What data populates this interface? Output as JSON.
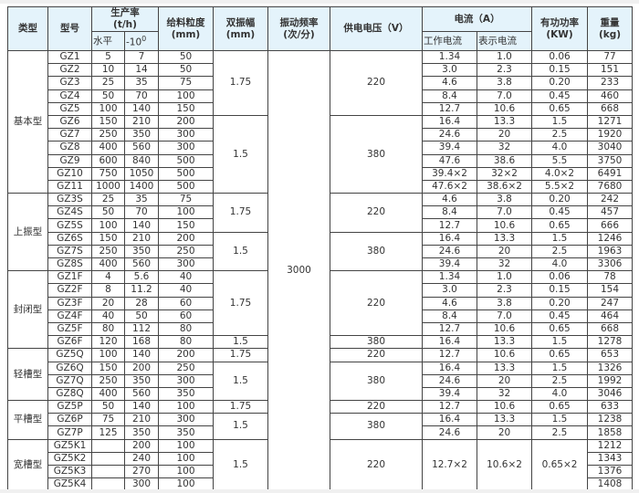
{
  "header": {
    "type": "类型",
    "model": "型号",
    "capacity": "生产率",
    "capacity_unit": "(t/h)",
    "capacity_horizontal": "水平",
    "capacity_incline": "-10",
    "capacity_incline_sup": "0",
    "feed_size": "给料粒度",
    "feed_size_unit": "(mm)",
    "amplitude": "双振幅",
    "amplitude_unit": "(mm)",
    "frequency": "振动频率",
    "frequency_unit": "(次/分)",
    "voltage": "供电电压（V）",
    "current": "电流（A）",
    "current_work": "工作电流",
    "current_show": "表示电流",
    "power": "有功功率",
    "power_unit": "(KW)",
    "weight": "重量",
    "weight_unit": "(kg)"
  },
  "types": [
    {
      "label": "基本型",
      "span": 11
    },
    {
      "label": "上振型",
      "span": 6
    },
    {
      "label": "封闭型",
      "span": 6
    },
    {
      "label": "轻槽型",
      "span": 4
    },
    {
      "label": "平槽型",
      "span": 3
    },
    {
      "label": "宽槽型",
      "span": 4
    }
  ],
  "amplitude": [
    {
      "value": "1.75",
      "span": 5
    },
    {
      "value": "1.5",
      "span": 6
    },
    {
      "value": "1.75",
      "span": 3
    },
    {
      "value": "1.5",
      "span": 3
    },
    {
      "value": "1.75",
      "span": 5
    },
    {
      "value": "1.5",
      "span": 1
    },
    {
      "value": "1.75",
      "span": 1
    },
    {
      "value": "1.5",
      "span": 3
    },
    {
      "value": "1.75",
      "span": 1
    },
    {
      "value": "1.5",
      "span": 2
    },
    {
      "value": "1.5",
      "span": 4
    }
  ],
  "frequency": [
    {
      "value": "3000",
      "span": 34
    }
  ],
  "voltage": [
    {
      "value": "220",
      "span": 5
    },
    {
      "value": "380",
      "span": 6
    },
    {
      "value": "220",
      "span": 3
    },
    {
      "value": "380",
      "span": 3
    },
    {
      "value": "220",
      "span": 5
    },
    {
      "value": "380",
      "span": 1
    },
    {
      "value": "220",
      "span": 1
    },
    {
      "value": "380",
      "span": 3
    },
    {
      "value": "220",
      "span": 1
    },
    {
      "value": "380",
      "span": 2
    },
    {
      "value": "220",
      "span": 4
    }
  ],
  "rows": [
    {
      "model": "GZ1",
      "horiz": "5",
      "incl": "7",
      "feed": "50",
      "work": "1.34",
      "show": "1.0",
      "power": "0.06",
      "weight": "77"
    },
    {
      "model": "GZ2",
      "horiz": "10",
      "incl": "14",
      "feed": "50",
      "work": "3.0",
      "show": "2.3",
      "power": "0.15",
      "weight": "151"
    },
    {
      "model": "GZ3",
      "horiz": "25",
      "incl": "35",
      "feed": "75",
      "work": "4.6",
      "show": "3.8",
      "power": "0.20",
      "weight": "233"
    },
    {
      "model": "GZ4",
      "horiz": "50",
      "incl": "70",
      "feed": "100",
      "work": "8.4",
      "show": "7.0",
      "power": "0.45",
      "weight": "460"
    },
    {
      "model": "GZ5",
      "horiz": "100",
      "incl": "140",
      "feed": "150",
      "work": "12.7",
      "show": "10.6",
      "power": "0.65",
      "weight": "668"
    },
    {
      "model": "GZ6",
      "horiz": "150",
      "incl": "210",
      "feed": "200",
      "work": "16.4",
      "show": "13.3",
      "power": "1.5",
      "weight": "1271"
    },
    {
      "model": "GZ7",
      "horiz": "250",
      "incl": "350",
      "feed": "300",
      "work": "24.6",
      "show": "20",
      "power": "2.5",
      "weight": "1920"
    },
    {
      "model": "GZ8",
      "horiz": "400",
      "incl": "560",
      "feed": "300",
      "work": "39.4",
      "show": "32",
      "power": "4.0",
      "weight": "3040"
    },
    {
      "model": "GZ9",
      "horiz": "600",
      "incl": "840",
      "feed": "500",
      "work": "47.6",
      "show": "38.6",
      "power": "5.5",
      "weight": "3750"
    },
    {
      "model": "GZ10",
      "horiz": "750",
      "incl": "1050",
      "feed": "500",
      "work": "39.4×2",
      "show": "32×2",
      "power": "4.0×2",
      "weight": "6491"
    },
    {
      "model": "GZ11",
      "horiz": "1000",
      "incl": "1400",
      "feed": "500",
      "work": "47.6×2",
      "show": "38.6×2",
      "power": "5.5×2",
      "weight": "7680"
    },
    {
      "model": "GZ3S",
      "horiz": "25",
      "incl": "35",
      "feed": "75",
      "work": "4.6",
      "show": "3.8",
      "power": "0.20",
      "weight": "242"
    },
    {
      "model": "GZ4S",
      "horiz": "50",
      "incl": "70",
      "feed": "100",
      "work": "8.4",
      "show": "7.0",
      "power": "0.45",
      "weight": "457"
    },
    {
      "model": "GZ5S",
      "horiz": "100",
      "incl": "140",
      "feed": "150",
      "work": "12.7",
      "show": "10.6",
      "power": "0.65",
      "weight": "666"
    },
    {
      "model": "GZ6S",
      "horiz": "150",
      "incl": "210",
      "feed": "200",
      "work": "16.4",
      "show": "13.3",
      "power": "1.5",
      "weight": "1246"
    },
    {
      "model": "GZ7S",
      "horiz": "250",
      "incl": "350",
      "feed": "250",
      "work": "24.6",
      "show": "20",
      "power": "2.5",
      "weight": "1963"
    },
    {
      "model": "GZ8S",
      "horiz": "400",
      "incl": "560",
      "feed": "300",
      "work": "39.4",
      "show": "32",
      "power": "4.0",
      "weight": "3306"
    },
    {
      "model": "GZ1F",
      "horiz": "4",
      "incl": "5.6",
      "feed": "40",
      "work": "1.34",
      "show": "1.0",
      "power": "0.06",
      "weight": "78"
    },
    {
      "model": "GZ2F",
      "horiz": "8",
      "incl": "11.2",
      "feed": "40",
      "work": "3.0",
      "show": "2.3",
      "power": "0.15",
      "weight": "154"
    },
    {
      "model": "GZ3F",
      "horiz": "20",
      "incl": "28",
      "feed": "60",
      "work": "4.6",
      "show": "3.8",
      "power": "0.20",
      "weight": "247"
    },
    {
      "model": "GZ4F",
      "horiz": "40",
      "incl": "50",
      "feed": "60",
      "work": "8.4",
      "show": "7.0",
      "power": "0.45",
      "weight": "464"
    },
    {
      "model": "GZ5F",
      "horiz": "80",
      "incl": "112",
      "feed": "80",
      "work": "12.7",
      "show": "10.6",
      "power": "0.65",
      "weight": "668"
    },
    {
      "model": "GZ6F",
      "horiz": "120",
      "incl": "168",
      "feed": "80",
      "work": "16.4",
      "show": "13.3",
      "power": "1.5",
      "weight": "1278"
    },
    {
      "model": "GZ5Q",
      "horiz": "100",
      "incl": "140",
      "feed": "200",
      "work": "12.7",
      "show": "10.6",
      "power": "0.65",
      "weight": "653"
    },
    {
      "model": "GZ6Q",
      "horiz": "150",
      "incl": "200",
      "feed": "250",
      "work": "16.4",
      "show": "13.3",
      "power": "1.5",
      "weight": "1326"
    },
    {
      "model": "GZ7Q",
      "horiz": "250",
      "incl": "350",
      "feed": "300",
      "work": "24.6",
      "show": "20",
      "power": "2.5",
      "weight": "1992"
    },
    {
      "model": "GZ8Q",
      "horiz": "400",
      "incl": "560",
      "feed": "350",
      "work": "39.4",
      "show": "32",
      "power": "4.0",
      "weight": "3046"
    },
    {
      "model": "GZ5P",
      "horiz": "50",
      "incl": "140",
      "feed": "100",
      "work": "12.7",
      "show": "10.6",
      "power": "0.65",
      "weight": "633"
    },
    {
      "model": "GZ6P",
      "horiz": "75",
      "incl": "210",
      "feed": "300",
      "work": "16.4",
      "show": "13.3",
      "power": "1.5",
      "weight": "1238"
    },
    {
      "model": "GZ7P",
      "horiz": "125",
      "incl": "350",
      "feed": "350",
      "work": "24.6",
      "show": "20",
      "power": "2.5",
      "weight": "1858"
    },
    {
      "model": "GZ5K1",
      "horiz": "",
      "incl": "200",
      "feed": "100",
      "work": "12.7×2",
      "show": "10.6×2",
      "power": "0.65×2",
      "elec_span": 4,
      "weight": "1212"
    },
    {
      "model": "GZ5K2",
      "horiz": "",
      "incl": "240",
      "feed": "100",
      "weight": "1343"
    },
    {
      "model": "GZ5K3",
      "horiz": "",
      "incl": "270",
      "feed": "100",
      "weight": "1376"
    },
    {
      "model": "GZ5K4",
      "horiz": "",
      "incl": "300",
      "feed": "100",
      "weight": "1408"
    }
  ]
}
